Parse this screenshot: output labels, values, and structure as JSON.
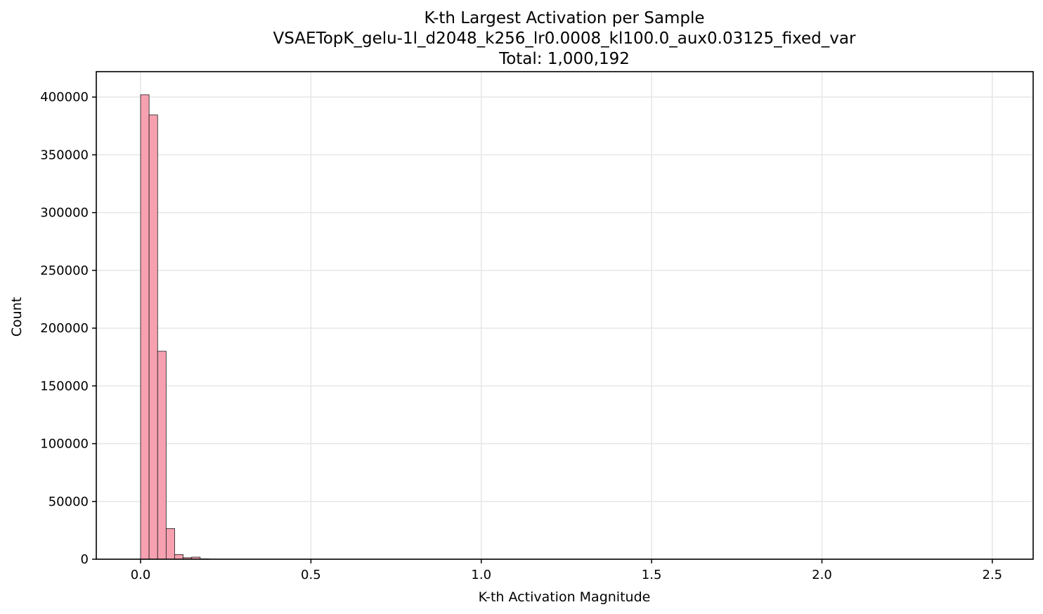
{
  "chart_data": {
    "type": "bar",
    "title_lines": [
      "K-th Largest Activation per Sample",
      "VSAETopK_gelu-1l_d2048_k256_lr0.0008_kl100.0_aux0.03125_fixed_var",
      "Total: 1,000,192"
    ],
    "xlabel": "K-th Activation Magnitude",
    "ylabel": "Count",
    "xlim": [
      -0.13,
      2.62
    ],
    "ylim": [
      0,
      422000
    ],
    "xticks": [
      0.0,
      0.5,
      1.0,
      1.5,
      2.0,
      2.5
    ],
    "xtick_labels": [
      "0.0",
      "0.5",
      "1.0",
      "1.5",
      "2.0",
      "2.5"
    ],
    "yticks": [
      0,
      50000,
      100000,
      150000,
      200000,
      250000,
      300000,
      350000,
      400000
    ],
    "ytick_labels": [
      "0",
      "50000",
      "100000",
      "150000",
      "200000",
      "250000",
      "300000",
      "350000",
      "400000"
    ],
    "grid": true,
    "bar_color": "#f7a1b0",
    "bar_edge_color": "#1a1a1a",
    "bins": [
      {
        "x0": 0.0,
        "x1": 0.025,
        "count": 402000
      },
      {
        "x0": 0.025,
        "x1": 0.05,
        "count": 384500
      },
      {
        "x0": 0.05,
        "x1": 0.075,
        "count": 180000
      },
      {
        "x0": 0.075,
        "x1": 0.1,
        "count": 26500
      },
      {
        "x0": 0.1,
        "x1": 0.125,
        "count": 4000
      },
      {
        "x0": 0.125,
        "x1": 0.15,
        "count": 1300
      },
      {
        "x0": 0.15,
        "x1": 0.175,
        "count": 1800
      },
      {
        "x0": 0.175,
        "x1": 0.2,
        "count": 300
      }
    ]
  }
}
